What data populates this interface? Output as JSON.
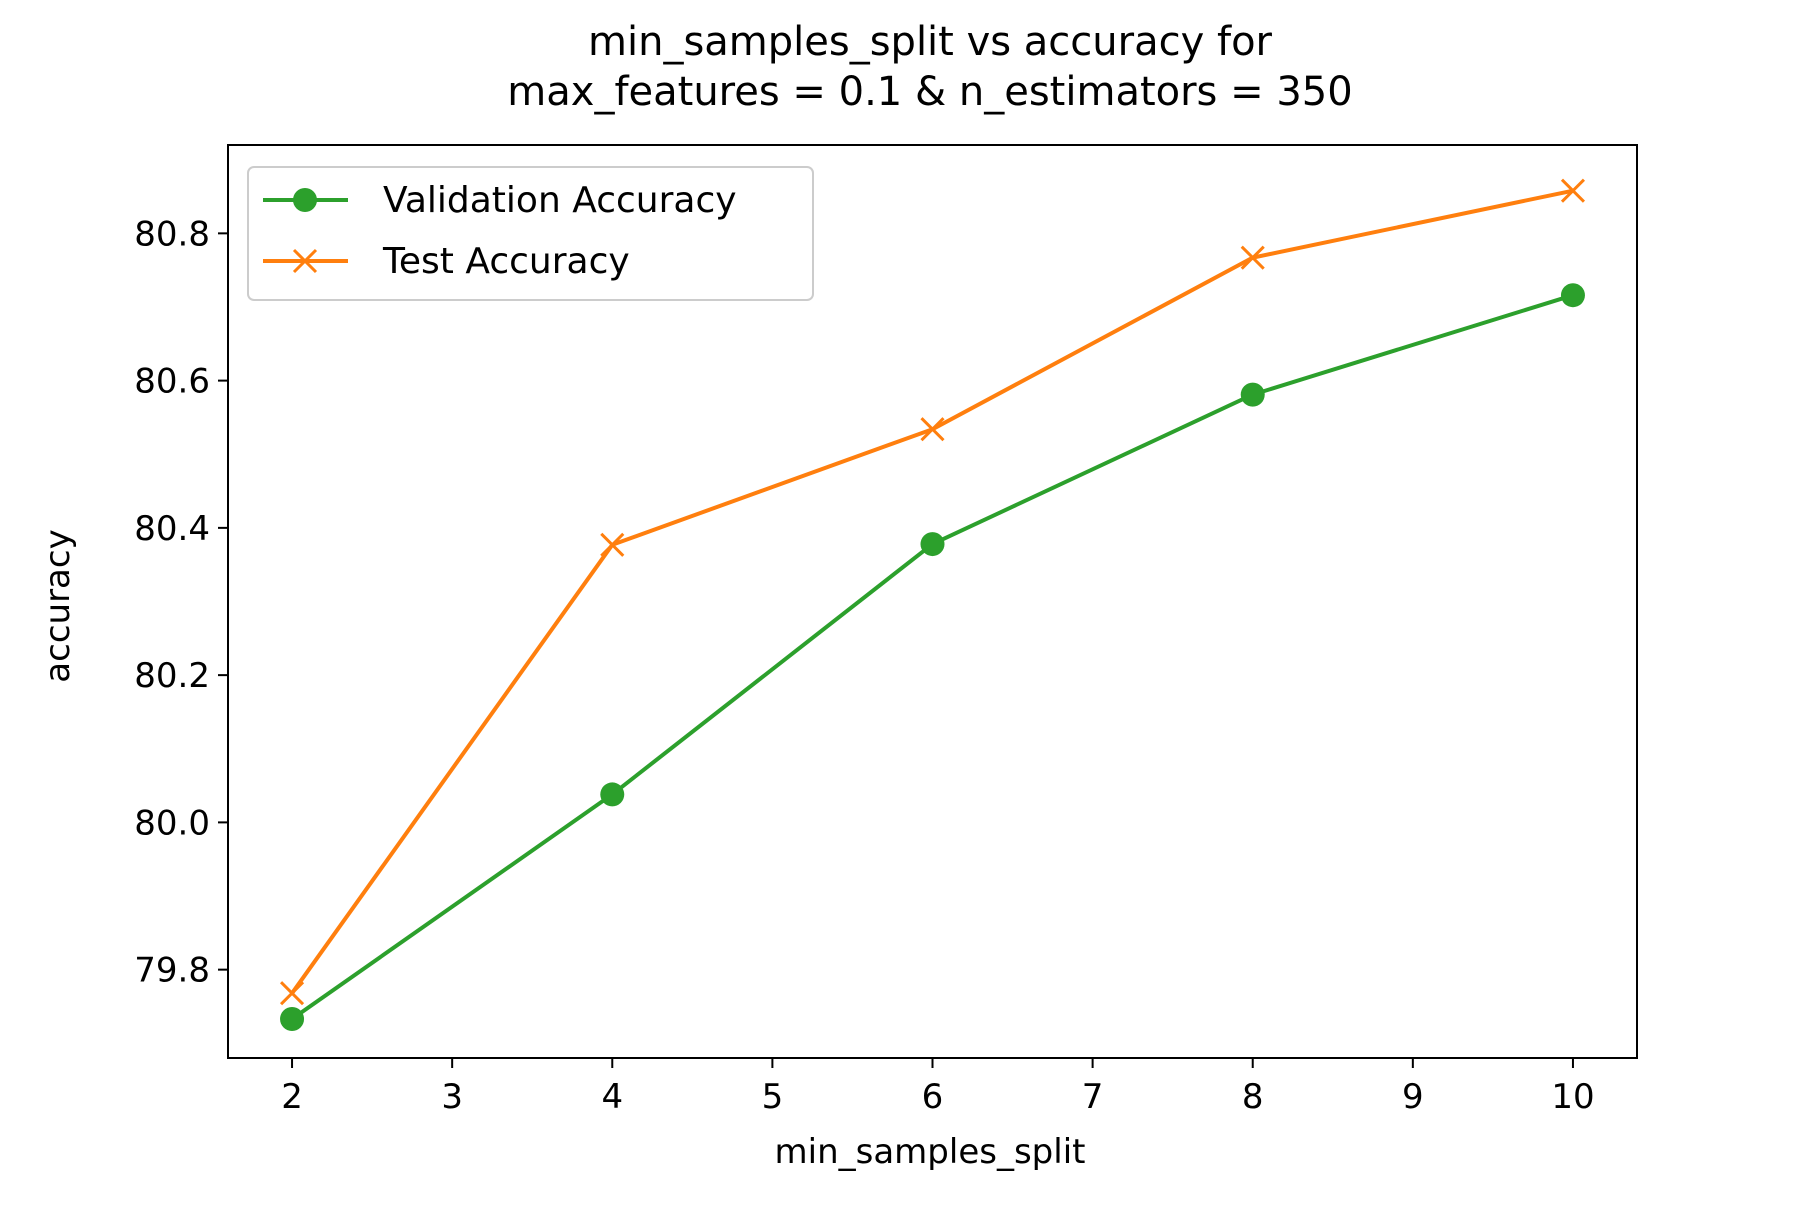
{
  "chart_data": {
    "type": "line",
    "title_line1": "min_samples_split vs accuracy for",
    "title_line2": "max_features = 0.1 & n_estimators = 350",
    "xlabel": "min_samples_split",
    "ylabel": "accuracy",
    "xlim": [
      1.6,
      10.4
    ],
    "ylim": [
      79.68,
      80.92
    ],
    "x": [
      2,
      4,
      6,
      8,
      10
    ],
    "xticks": [
      "2",
      "3",
      "4",
      "5",
      "6",
      "7",
      "8",
      "9",
      "10"
    ],
    "yticks": [
      "79.8",
      "80.0",
      "80.2",
      "80.4",
      "80.6",
      "80.8"
    ],
    "legend_position": "upper-left",
    "series": [
      {
        "name": "Validation Accuracy",
        "color": "#2ca02c",
        "marker": "circle",
        "values": [
          79.733,
          80.038,
          80.378,
          80.581,
          80.716
        ]
      },
      {
        "name": "Test Accuracy",
        "color": "#ff7f0e",
        "marker": "x",
        "values": [
          79.768,
          80.377,
          80.534,
          80.767,
          80.858
        ]
      }
    ]
  }
}
